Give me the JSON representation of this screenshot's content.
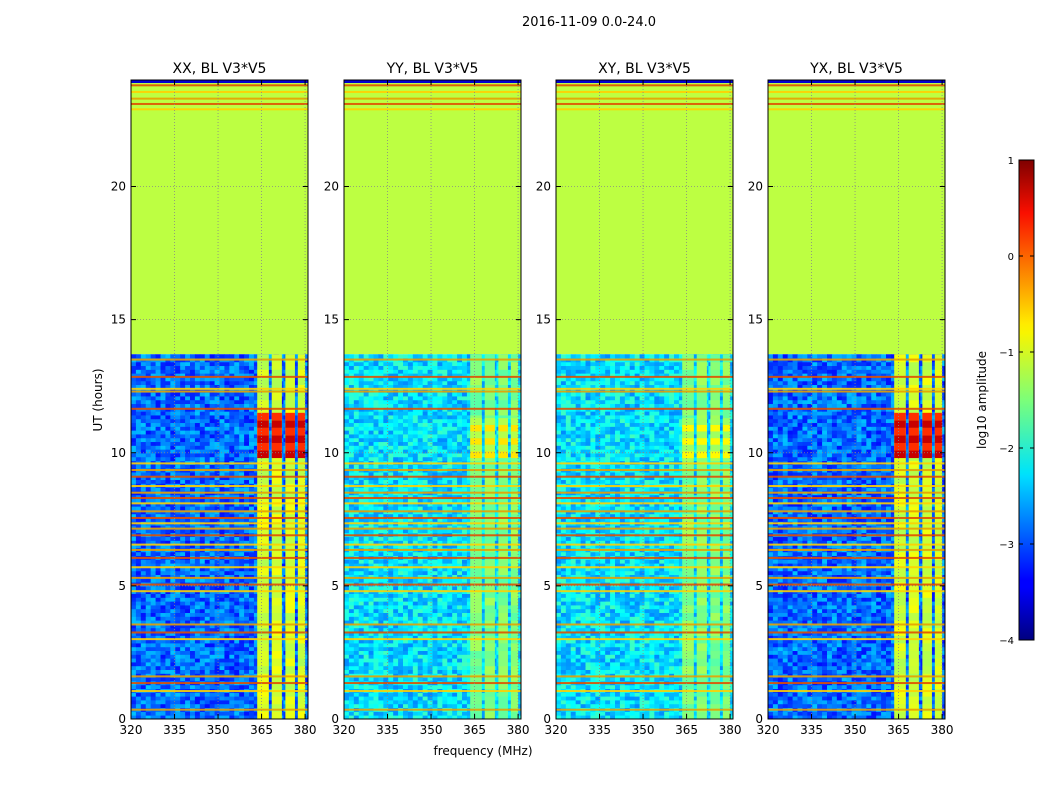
{
  "figure_title": "2016-11-09 0.0-24.0",
  "colors": {
    "no_data": "#99ff55",
    "frame": "#000000",
    "grid": "#888888"
  },
  "chart_data": {
    "type": "heatmap",
    "suptitle": "2016-11-09 0.0-24.0",
    "shared_xlabel": "frequency (MHz)",
    "shared_ylabel": "UT (hours)",
    "xlim": [
      320,
      381
    ],
    "ylim": [
      0,
      24
    ],
    "x_ticks": [
      320,
      335,
      350,
      365,
      380
    ],
    "y_ticks": [
      0,
      5,
      10,
      15,
      20
    ],
    "data_end_hour": 13.7,
    "no_data_value": -1.2,
    "rfi_band_mhz": [
      363,
      380
    ],
    "rfi_channels_mhz": [
      [
        363.5,
        367.5
      ],
      [
        368.5,
        372.0
      ],
      [
        373.2,
        376.5
      ],
      [
        377.5,
        380.0
      ]
    ],
    "panels": [
      {
        "title": "XX, BL V3*V5",
        "background_level": -2.9,
        "rfi_level": -1.1,
        "burst_level": 0.5,
        "burst_hours": [
          9.8,
          11.5
        ]
      },
      {
        "title": "YY, BL V3*V5",
        "background_level": -2.3,
        "rfi_level": -1.5,
        "burst_level": -0.9,
        "burst_hours": [
          9.8,
          11.3
        ]
      },
      {
        "title": "XY, BL V3*V5",
        "background_level": -2.3,
        "rfi_level": -1.5,
        "burst_level": -1.0,
        "burst_hours": [
          9.8,
          11.3
        ]
      },
      {
        "title": "YX, BL V3*V5",
        "background_level": -2.9,
        "rfi_level": -1.1,
        "burst_level": 0.5,
        "burst_hours": [
          9.8,
          11.5
        ]
      }
    ],
    "horizontal_rfi_hours": [
      0.35,
      1.05,
      1.35,
      1.6,
      3.0,
      3.25,
      3.55,
      4.8,
      5.05,
      5.3,
      5.7,
      6.05,
      6.35,
      6.55,
      6.9,
      7.15,
      7.35,
      7.55,
      7.8,
      8.1,
      8.3,
      8.5,
      8.75,
      9.1,
      9.35,
      9.6,
      11.65,
      12.3,
      12.4,
      12.85,
      13.5,
      22.9,
      23.1,
      23.3,
      23.55,
      23.8
    ],
    "colorbar": {
      "label": "log10 amplitude",
      "colormap": "jet",
      "range": [
        -4,
        1
      ],
      "ticks": [
        1,
        0,
        -1,
        -2,
        -3,
        -4
      ],
      "tick_labels": [
        "1",
        "0",
        "−1",
        "−2",
        "−3",
        "−4"
      ]
    }
  }
}
